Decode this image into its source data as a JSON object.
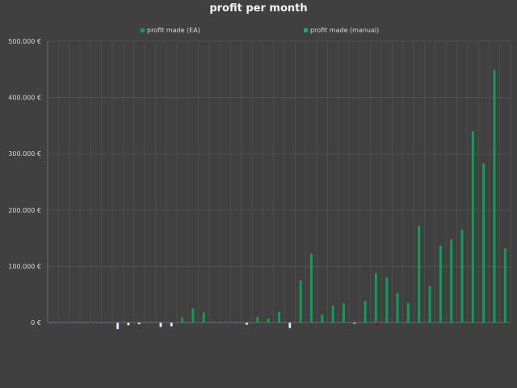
{
  "chart_data": {
    "type": "bar",
    "title": "profit per month",
    "xlabel": "",
    "ylabel": "",
    "ylim": [
      -20000,
      500000
    ],
    "yticks": [
      {
        "value": 0,
        "label": "0 €"
      },
      {
        "value": 100000,
        "label": "100.000 €"
      },
      {
        "value": 200000,
        "label": "200.000 €"
      },
      {
        "value": 300000,
        "label": "300.000 €"
      },
      {
        "value": 400000,
        "label": "400.000 €"
      },
      {
        "value": 500000,
        "label": "500.000 €"
      }
    ],
    "grid": true,
    "legend_position": "top",
    "colors": {
      "background": "#404040",
      "grid": "#595959",
      "ea": "#0e9f56",
      "manual": "#13b061",
      "negative": "#e8eef8",
      "loss_marker": "#c00000",
      "small": "#2e5a87"
    },
    "series": [
      {
        "name": "profit made (EA)",
        "values": [
          2000,
          2000,
          2000,
          2000,
          2000,
          2000,
          -12000,
          -5000,
          -3000,
          2000,
          -8000,
          -7000,
          9000,
          25000,
          18000,
          4000,
          1000,
          3000,
          -4000,
          10000,
          7000,
          19000,
          -10000,
          75000,
          122000,
          14000,
          30000,
          34000,
          -2000,
          38000,
          88000,
          80000,
          52000,
          35000,
          172000,
          65000,
          137000,
          148000,
          165000,
          340000,
          283000,
          449000,
          132000
        ]
      },
      {
        "name": "profit made (manual)",
        "values": [
          0,
          0,
          0,
          0,
          0,
          0,
          0,
          0,
          0,
          0,
          0,
          0,
          0,
          0,
          0,
          0,
          0,
          0,
          0,
          0,
          0,
          0,
          0,
          0,
          0,
          0,
          0,
          0,
          0,
          0,
          -5000,
          0,
          0,
          0,
          0,
          0,
          0,
          0,
          0,
          0,
          0,
          0,
          0
        ]
      }
    ]
  }
}
